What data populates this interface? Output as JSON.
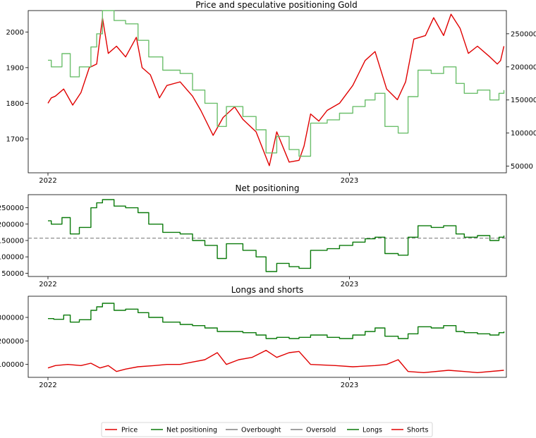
{
  "colors": {
    "price": "#e00000",
    "net": "#0a7a0a",
    "longs_top": "#6cbf6c",
    "longs": "#0a7a0a",
    "shorts": "#e00000",
    "threshold": "#808080"
  },
  "chart_data": [
    {
      "type": "line",
      "title": "Price and speculative positioning Gold",
      "x_tick_labels": [
        "2022",
        "2023"
      ],
      "x_range": [
        "2022-01-01",
        "2023-07-10"
      ],
      "y_left": {
        "range": [
          1605,
          2060
        ],
        "ticks": [
          1700,
          1800,
          1900,
          2000
        ]
      },
      "y_right": {
        "range": [
          40000,
          285000
        ],
        "ticks": [
          50000,
          100000,
          150000,
          200000,
          250000
        ]
      },
      "series": [
        {
          "name": "Price",
          "axis": "left",
          "style": "solid",
          "points": [
            [
              "2022-01-01",
              1800
            ],
            [
              "2022-01-05",
              1815
            ],
            [
              "2022-01-10",
              1820
            ],
            [
              "2022-01-20",
              1840
            ],
            [
              "2022-01-31",
              1795
            ],
            [
              "2022-02-10",
              1830
            ],
            [
              "2022-02-20",
              1900
            ],
            [
              "2022-03-01",
              1910
            ],
            [
              "2022-03-08",
              2040
            ],
            [
              "2022-03-15",
              1940
            ],
            [
              "2022-03-25",
              1960
            ],
            [
              "2022-04-05",
              1930
            ],
            [
              "2022-04-18",
              1985
            ],
            [
              "2022-04-25",
              1900
            ],
            [
              "2022-05-05",
              1880
            ],
            [
              "2022-05-16",
              1815
            ],
            [
              "2022-05-25",
              1850
            ],
            [
              "2022-06-10",
              1860
            ],
            [
              "2022-06-25",
              1820
            ],
            [
              "2022-07-05",
              1780
            ],
            [
              "2022-07-20",
              1710
            ],
            [
              "2022-08-01",
              1760
            ],
            [
              "2022-08-15",
              1790
            ],
            [
              "2022-08-25",
              1755
            ],
            [
              "2022-09-10",
              1720
            ],
            [
              "2022-09-26",
              1625
            ],
            [
              "2022-10-05",
              1720
            ],
            [
              "2022-10-20",
              1635
            ],
            [
              "2022-11-01",
              1640
            ],
            [
              "2022-11-07",
              1680
            ],
            [
              "2022-11-15",
              1770
            ],
            [
              "2022-11-25",
              1750
            ],
            [
              "2022-12-05",
              1780
            ],
            [
              "2022-12-20",
              1800
            ],
            [
              "2023-01-05",
              1850
            ],
            [
              "2023-01-20",
              1920
            ],
            [
              "2023-02-01",
              1945
            ],
            [
              "2023-02-15",
              1840
            ],
            [
              "2023-02-28",
              1810
            ],
            [
              "2023-03-10",
              1860
            ],
            [
              "2023-03-20",
              1980
            ],
            [
              "2023-04-03",
              1990
            ],
            [
              "2023-04-13",
              2040
            ],
            [
              "2023-04-25",
              1990
            ],
            [
              "2023-05-04",
              2050
            ],
            [
              "2023-05-15",
              2010
            ],
            [
              "2023-05-25",
              1940
            ],
            [
              "2023-06-05",
              1960
            ],
            [
              "2023-06-20",
              1930
            ],
            [
              "2023-06-29",
              1910
            ],
            [
              "2023-07-03",
              1920
            ],
            [
              "2023-07-07",
              1960
            ]
          ]
        },
        {
          "name": "Longs",
          "axis": "right",
          "style": "step",
          "points": [
            [
              "2022-01-01",
              210000
            ],
            [
              "2022-01-05",
              200000
            ],
            [
              "2022-01-18",
              220000
            ],
            [
              "2022-01-28",
              185000
            ],
            [
              "2022-02-08",
              200000
            ],
            [
              "2022-02-22",
              230000
            ],
            [
              "2022-03-01",
              250000
            ],
            [
              "2022-03-08",
              285000
            ],
            [
              "2022-03-22",
              270000
            ],
            [
              "2022-04-05",
              265000
            ],
            [
              "2022-04-20",
              240000
            ],
            [
              "2022-05-03",
              215000
            ],
            [
              "2022-05-20",
              195000
            ],
            [
              "2022-06-10",
              190000
            ],
            [
              "2022-06-25",
              165000
            ],
            [
              "2022-07-10",
              145000
            ],
            [
              "2022-07-25",
              110000
            ],
            [
              "2022-08-05",
              140000
            ],
            [
              "2022-08-25",
              125000
            ],
            [
              "2022-09-10",
              105000
            ],
            [
              "2022-09-22",
              70000
            ],
            [
              "2022-10-05",
              95000
            ],
            [
              "2022-10-20",
              75000
            ],
            [
              "2022-11-01",
              65000
            ],
            [
              "2022-11-15",
              115000
            ],
            [
              "2022-12-05",
              120000
            ],
            [
              "2022-12-20",
              130000
            ],
            [
              "2023-01-05",
              140000
            ],
            [
              "2023-01-20",
              150000
            ],
            [
              "2023-02-01",
              160000
            ],
            [
              "2023-02-13",
              110000
            ],
            [
              "2023-03-01",
              100000
            ],
            [
              "2023-03-13",
              155000
            ],
            [
              "2023-03-25",
              195000
            ],
            [
              "2023-04-10",
              190000
            ],
            [
              "2023-04-25",
              200000
            ],
            [
              "2023-05-10",
              175000
            ],
            [
              "2023-05-20",
              160000
            ],
            [
              "2023-06-05",
              165000
            ],
            [
              "2023-06-20",
              150000
            ],
            [
              "2023-07-01",
              160000
            ],
            [
              "2023-07-07",
              165000
            ]
          ]
        }
      ]
    },
    {
      "type": "line",
      "title": "Net positioning",
      "x_tick_labels": [
        "2022",
        "2023"
      ],
      "x_range": [
        "2022-01-01",
        "2023-07-10"
      ],
      "y": {
        "range": [
          40000,
          290000
        ],
        "ticks": [
          50000,
          100000,
          150000,
          200000,
          250000
        ]
      },
      "reference_line": {
        "value": 157000,
        "style": "dashed"
      },
      "series": [
        {
          "name": "Net positioning",
          "style": "step",
          "points": [
            [
              "2022-01-01",
              210000
            ],
            [
              "2022-01-05",
              200000
            ],
            [
              "2022-01-18",
              220000
            ],
            [
              "2022-01-28",
              170000
            ],
            [
              "2022-02-08",
              190000
            ],
            [
              "2022-02-22",
              250000
            ],
            [
              "2022-03-01",
              265000
            ],
            [
              "2022-03-08",
              275000
            ],
            [
              "2022-03-22",
              255000
            ],
            [
              "2022-04-05",
              250000
            ],
            [
              "2022-04-20",
              235000
            ],
            [
              "2022-05-03",
              200000
            ],
            [
              "2022-05-20",
              175000
            ],
            [
              "2022-06-10",
              170000
            ],
            [
              "2022-06-25",
              150000
            ],
            [
              "2022-07-10",
              135000
            ],
            [
              "2022-07-25",
              95000
            ],
            [
              "2022-08-05",
              140000
            ],
            [
              "2022-08-25",
              120000
            ],
            [
              "2022-09-10",
              100000
            ],
            [
              "2022-09-22",
              55000
            ],
            [
              "2022-10-05",
              80000
            ],
            [
              "2022-10-20",
              70000
            ],
            [
              "2022-11-01",
              65000
            ],
            [
              "2022-11-15",
              120000
            ],
            [
              "2022-12-05",
              125000
            ],
            [
              "2022-12-20",
              135000
            ],
            [
              "2023-01-05",
              145000
            ],
            [
              "2023-01-20",
              155000
            ],
            [
              "2023-02-01",
              160000
            ],
            [
              "2023-02-13",
              110000
            ],
            [
              "2023-03-01",
              105000
            ],
            [
              "2023-03-13",
              160000
            ],
            [
              "2023-03-25",
              195000
            ],
            [
              "2023-04-10",
              190000
            ],
            [
              "2023-04-25",
              195000
            ],
            [
              "2023-05-10",
              170000
            ],
            [
              "2023-05-20",
              160000
            ],
            [
              "2023-06-05",
              165000
            ],
            [
              "2023-06-20",
              150000
            ],
            [
              "2023-07-01",
              160000
            ],
            [
              "2023-07-07",
              165000
            ]
          ]
        }
      ]
    },
    {
      "type": "line",
      "title": "Longs and shorts",
      "x_tick_labels": [
        "2022",
        "2023"
      ],
      "x_range": [
        "2022-01-01",
        "2023-07-10"
      ],
      "y": {
        "range": [
          45000,
          390000
        ],
        "ticks": [
          100000,
          200000,
          300000
        ]
      },
      "series": [
        {
          "name": "Longs",
          "style": "step",
          "points": [
            [
              "2022-01-01",
              295000
            ],
            [
              "2022-01-08",
              292000
            ],
            [
              "2022-01-20",
              310000
            ],
            [
              "2022-01-28",
              280000
            ],
            [
              "2022-02-08",
              290000
            ],
            [
              "2022-02-22",
              330000
            ],
            [
              "2022-03-01",
              345000
            ],
            [
              "2022-03-08",
              360000
            ],
            [
              "2022-03-22",
              330000
            ],
            [
              "2022-04-05",
              335000
            ],
            [
              "2022-04-20",
              320000
            ],
            [
              "2022-05-03",
              300000
            ],
            [
              "2022-05-20",
              280000
            ],
            [
              "2022-06-10",
              270000
            ],
            [
              "2022-06-25",
              265000
            ],
            [
              "2022-07-10",
              255000
            ],
            [
              "2022-07-25",
              240000
            ],
            [
              "2022-08-25",
              235000
            ],
            [
              "2022-09-10",
              225000
            ],
            [
              "2022-09-22",
              210000
            ],
            [
              "2022-10-05",
              215000
            ],
            [
              "2022-10-20",
              210000
            ],
            [
              "2022-11-01",
              215000
            ],
            [
              "2022-11-15",
              225000
            ],
            [
              "2022-12-05",
              215000
            ],
            [
              "2022-12-20",
              210000
            ],
            [
              "2023-01-05",
              225000
            ],
            [
              "2023-01-20",
              240000
            ],
            [
              "2023-02-01",
              255000
            ],
            [
              "2023-02-13",
              220000
            ],
            [
              "2023-03-01",
              210000
            ],
            [
              "2023-03-13",
              230000
            ],
            [
              "2023-03-25",
              260000
            ],
            [
              "2023-04-10",
              255000
            ],
            [
              "2023-04-25",
              265000
            ],
            [
              "2023-05-10",
              240000
            ],
            [
              "2023-05-20",
              235000
            ],
            [
              "2023-06-05",
              230000
            ],
            [
              "2023-06-20",
              225000
            ],
            [
              "2023-07-01",
              235000
            ],
            [
              "2023-07-07",
              240000
            ]
          ]
        },
        {
          "name": "Shorts",
          "style": "solid",
          "points": [
            [
              "2022-01-01",
              85000
            ],
            [
              "2022-01-10",
              95000
            ],
            [
              "2022-01-25",
              100000
            ],
            [
              "2022-02-10",
              95000
            ],
            [
              "2022-02-22",
              105000
            ],
            [
              "2022-03-05",
              85000
            ],
            [
              "2022-03-15",
              95000
            ],
            [
              "2022-03-25",
              70000
            ],
            [
              "2022-04-05",
              80000
            ],
            [
              "2022-04-20",
              90000
            ],
            [
              "2022-05-10",
              95000
            ],
            [
              "2022-05-25",
              100000
            ],
            [
              "2022-06-10",
              100000
            ],
            [
              "2022-06-25",
              110000
            ],
            [
              "2022-07-10",
              120000
            ],
            [
              "2022-07-25",
              150000
            ],
            [
              "2022-08-05",
              100000
            ],
            [
              "2022-08-20",
              120000
            ],
            [
              "2022-09-05",
              130000
            ],
            [
              "2022-09-22",
              160000
            ],
            [
              "2022-10-05",
              130000
            ],
            [
              "2022-10-20",
              150000
            ],
            [
              "2022-11-01",
              155000
            ],
            [
              "2022-11-15",
              100000
            ],
            [
              "2022-12-15",
              95000
            ],
            [
              "2023-01-05",
              90000
            ],
            [
              "2023-02-01",
              95000
            ],
            [
              "2023-02-15",
              100000
            ],
            [
              "2023-03-01",
              120000
            ],
            [
              "2023-03-13",
              70000
            ],
            [
              "2023-04-01",
              65000
            ],
            [
              "2023-05-01",
              75000
            ],
            [
              "2023-05-20",
              70000
            ],
            [
              "2023-06-05",
              65000
            ],
            [
              "2023-07-07",
              75000
            ]
          ]
        }
      ]
    }
  ],
  "legend": {
    "placement": "bottom-center",
    "items": [
      {
        "label": "Price",
        "color": "#e00000",
        "style": "solid"
      },
      {
        "label": "Net positioning",
        "color": "#0a7a0a",
        "style": "solid"
      },
      {
        "label": "Overbought",
        "color": "#808080",
        "style": "solid"
      },
      {
        "label": "Oversold",
        "color": "#808080",
        "style": "solid"
      },
      {
        "label": "Longs",
        "color": "#0a7a0a",
        "style": "solid"
      },
      {
        "label": "Shorts",
        "color": "#e00000",
        "style": "solid"
      }
    ]
  }
}
